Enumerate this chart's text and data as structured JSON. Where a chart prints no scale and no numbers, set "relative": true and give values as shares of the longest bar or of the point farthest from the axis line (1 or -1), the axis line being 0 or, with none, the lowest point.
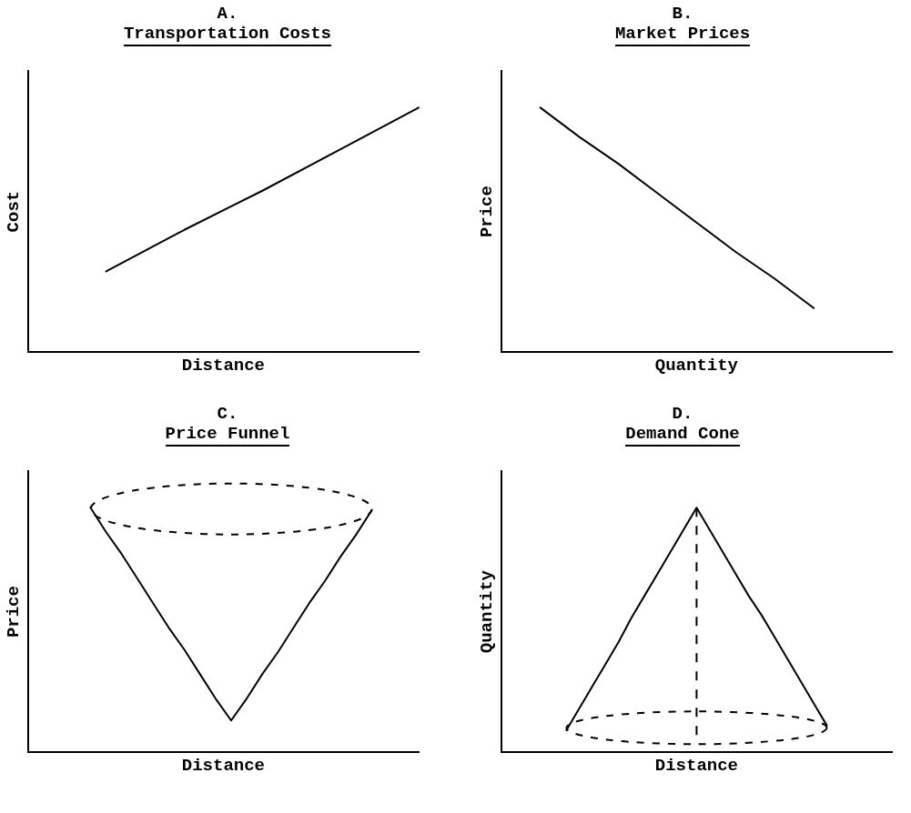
{
  "chart_data": [
    {
      "type": "line",
      "title": "A.",
      "subtitle": "Transportation Costs",
      "xlabel": "Distance",
      "ylabel": "Cost",
      "relative": true,
      "tick_labels": false,
      "legend": false,
      "marker": "none",
      "categories": [
        null,
        null,
        null,
        null,
        null,
        null
      ],
      "series": [
        {
          "color": "#000000",
          "values": [
            null,
            0.33,
            0.5,
            0.66,
            0.83,
            1
          ],
          "line_style": "solid"
        }
      ]
    },
    {
      "type": "line",
      "title": "B.",
      "subtitle": "Market Prices",
      "xlabel": "Quantity",
      "ylabel": "Price",
      "relative": true,
      "tick_labels": false,
      "legend": false,
      "marker": "none",
      "categories": [
        null,
        null,
        null,
        null,
        null,
        null,
        null,
        null,
        null,
        null,
        null
      ],
      "series": [
        {
          "color": "#000000",
          "values": [
            null,
            1,
            0.88,
            0.77,
            0.65,
            0.53,
            0.41,
            0.3,
            0.18,
            null,
            null
          ],
          "line_style": "solid"
        }
      ]
    },
    {
      "type": "line",
      "title": "C.",
      "subtitle": "Price Funnel",
      "xlabel": "Distance",
      "ylabel": "Price",
      "relative": true,
      "tick_labels": false,
      "legend": false,
      "marker": "none",
      "categories": [
        null,
        null,
        null,
        null,
        null,
        null,
        null,
        null,
        null,
        null,
        null,
        null,
        null,
        null,
        null,
        null,
        null,
        null,
        null,
        null,
        null,
        null,
        null,
        null,
        null,
        null
      ],
      "series": [
        {
          "color": "#000000",
          "values": [
            null,
            null,
            null,
            null,
            1,
            0.9,
            0.81,
            0.71,
            0.61,
            0.51,
            0.42,
            0.32,
            0.22,
            0.13,
            0.22,
            0.32,
            0.41,
            0.51,
            0.61,
            0.7,
            0.8,
            0.89,
            0.99,
            null,
            null,
            null
          ],
          "line_style": "solid"
        }
      ]
    },
    {
      "type": "line",
      "title": "D.",
      "subtitle": "Demand Cone",
      "xlabel": "Distance",
      "ylabel": "Quantity",
      "relative": true,
      "tick_labels": false,
      "legend": false,
      "marker": "none",
      "categories": [
        null,
        null,
        null,
        null,
        null,
        null,
        null,
        null,
        null,
        null,
        null,
        null,
        null,
        null,
        null,
        null,
        null,
        null,
        null,
        null,
        null,
        null,
        null,
        null,
        null,
        null,
        null,
        null,
        null,
        null,
        null
      ],
      "series": [
        {
          "color": "#000000",
          "values": [
            null,
            null,
            null,
            null,
            null,
            0.09,
            0.18,
            0.27,
            0.36,
            0.45,
            0.55,
            0.64,
            0.73,
            0.82,
            0.91,
            1,
            0.91,
            0.82,
            0.73,
            0.64,
            0.56,
            0.47,
            0.38,
            0.29,
            0.2,
            0.11,
            null,
            null,
            null,
            null,
            null
          ],
          "line_style": "solid"
        }
      ]
    }
  ]
}
